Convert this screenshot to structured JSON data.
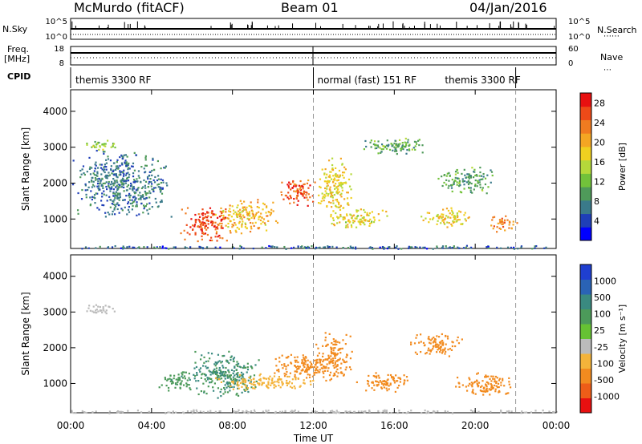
{
  "header": {
    "radar": "McMurdo (fitACF)",
    "beam": "Beam 01",
    "date": "04/Jan/2016"
  },
  "side_labels": {
    "nsky": "N.Sky",
    "nsky_ticks": [
      "10^5",
      "10^0"
    ],
    "nsearch": "N.Search",
    "nsearch_ticks": [
      "10^5",
      "10^0"
    ],
    "freq_top": "Freq.",
    "freq_unit": "[MHz]",
    "freq_ticks": [
      "18",
      "8"
    ],
    "nave": "Nave",
    "nave_ticks": [
      "60",
      "0"
    ],
    "cpid": "CPID"
  },
  "cpid_segments": [
    {
      "label": "themis 3300 RF",
      "start_hour": 0
    },
    {
      "label": "normal (fast) 151 RF",
      "start_hour": 12
    },
    {
      "label": "themis 3300 RF",
      "start_hour": 22
    }
  ],
  "colors": {
    "power_scale": [
      "#0000ff",
      "#1f3fb8",
      "#3a7a8a",
      "#4f9a5a",
      "#72c23a",
      "#b5d93a",
      "#f0d020",
      "#f4a623",
      "#f07b20",
      "#ee4a18",
      "#e81010"
    ],
    "velocity_scale": [
      "#1f3fd0",
      "#2a63b5",
      "#3a8a80",
      "#4c9a5a",
      "#66c233",
      "#bbbbbb",
      "#f4b33a",
      "#f28b1f",
      "#ee5d18",
      "#e81010"
    ]
  },
  "chart_data": [
    {
      "type": "heatmap",
      "name": "power",
      "title": "Beam 01",
      "xlabel": "Time UT",
      "ylabel": "Slant Range [km]",
      "x_ticks": [
        "00:00",
        "04:00",
        "08:00",
        "12:00",
        "16:00",
        "20:00",
        "00:00"
      ],
      "xlim_hours": [
        0,
        24
      ],
      "y_ticks": [
        1000,
        2000,
        3000,
        4000
      ],
      "ylim": [
        180,
        4600
      ],
      "colorbar": {
        "label": "Power [dB]",
        "ticks": [
          4,
          8,
          12,
          16,
          20,
          24,
          28
        ],
        "range": [
          0,
          30
        ]
      },
      "features": [
        {
          "t": 6.6,
          "r": 900,
          "dt": 1.2,
          "dr": 550,
          "level": 27
        },
        {
          "t": 8.6,
          "r": 1100,
          "dt": 1.6,
          "dr": 500,
          "level": 20
        },
        {
          "t": 11.2,
          "r": 1750,
          "dt": 1.0,
          "dr": 420,
          "level": 26
        },
        {
          "t": 13.0,
          "r": 1900,
          "dt": 0.9,
          "dr": 900,
          "level": 18
        },
        {
          "t": 14.2,
          "r": 1050,
          "dt": 1.5,
          "dr": 300,
          "level": 17
        },
        {
          "t": 18.5,
          "r": 1050,
          "dt": 1.4,
          "dr": 300,
          "level": 18
        },
        {
          "t": 21.3,
          "r": 900,
          "dt": 0.8,
          "dr": 250,
          "level": 24
        },
        {
          "t": 1.4,
          "r": 3080,
          "dt": 0.9,
          "dr": 150,
          "level": 13
        },
        {
          "t": 16.0,
          "r": 3050,
          "dt": 2.0,
          "dr": 250,
          "level": 10
        },
        {
          "t": 19.5,
          "r": 2100,
          "dt": 1.5,
          "dr": 400,
          "level": 10
        },
        {
          "t": 2.5,
          "r": 2000,
          "dt": 2.5,
          "dr": 1000,
          "level": 6
        },
        {
          "t": 12.0,
          "r": 230,
          "dt": 24.0,
          "dr": 50,
          "level": 5
        }
      ]
    },
    {
      "type": "heatmap",
      "name": "velocity",
      "xlabel": "Time UT",
      "ylabel": "Slant Range [km]",
      "x_ticks": [
        "00:00",
        "04:00",
        "08:00",
        "12:00",
        "16:00",
        "20:00",
        "00:00"
      ],
      "xlim_hours": [
        0,
        24
      ],
      "y_ticks": [
        1000,
        2000,
        3000,
        4000
      ],
      "ylim": [
        180,
        4600
      ],
      "colorbar": {
        "label": "Velocity [m s⁻¹]",
        "ticks": [
          "1000",
          "500",
          "100",
          "25",
          "-25",
          "-100",
          "-500",
          "-1000"
        ]
      },
      "features": [
        {
          "t": 7.6,
          "r": 1250,
          "dt": 1.8,
          "dr": 700,
          "level": 100
        },
        {
          "t": 5.3,
          "r": 1100,
          "dt": 1.0,
          "dr": 300,
          "level": 80
        },
        {
          "t": 11.5,
          "r": 1500,
          "dt": 1.6,
          "dr": 400,
          "level": -200
        },
        {
          "t": 13.0,
          "r": 1750,
          "dt": 1.0,
          "dr": 700,
          "level": -250
        },
        {
          "t": 15.5,
          "r": 1050,
          "dt": 1.4,
          "dr": 300,
          "level": -150
        },
        {
          "t": 20.5,
          "r": 1000,
          "dt": 1.6,
          "dr": 350,
          "level": -300
        },
        {
          "t": 18.0,
          "r": 2100,
          "dt": 1.4,
          "dr": 350,
          "level": -150
        },
        {
          "t": 1.4,
          "r": 3100,
          "dt": 0.9,
          "dr": 150,
          "level": 0
        },
        {
          "t": 12.0,
          "r": 230,
          "dt": 24.0,
          "dr": 50,
          "level": 0
        },
        {
          "t": 9.5,
          "r": 1050,
          "dt": 2.5,
          "dr": 250,
          "level": -80
        }
      ]
    }
  ]
}
